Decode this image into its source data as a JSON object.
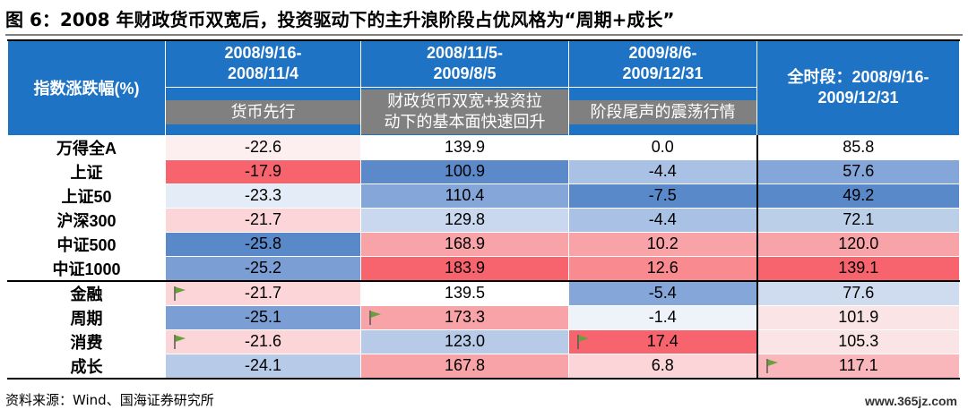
{
  "title": "图 6：2008 年财政货币双宽后，投资驱动下的主升浪阶段占优风格为“周期+成长”",
  "corner_label": "指数涨跌幅(%)",
  "periods": [
    {
      "range": "2008/9/16-\n2008/11/4",
      "phase": "货币先行"
    },
    {
      "range": "2008/11/5-\n2009/8/5",
      "phase": "财政货币双宽+投资拉\n动下的基本面快速回升"
    },
    {
      "range": "2009/8/6-\n2009/12/31",
      "phase": "阶段尾声的震荡行情"
    }
  ],
  "full_period": "全时段：2008/9/16-\n2009/12/31",
  "rows": [
    {
      "name": "万得全A",
      "values": [
        "-22.6",
        "139.9",
        "0.0",
        "85.8"
      ],
      "colors": [
        "#fdeef0",
        "#ffffff",
        "#ffffff",
        "#ffffff"
      ],
      "group_start": false,
      "flags": [
        false,
        false,
        false,
        false
      ]
    },
    {
      "name": "上证",
      "values": [
        "-17.9",
        "100.9",
        "-4.4",
        "57.6"
      ],
      "colors": [
        "#f8646d",
        "#5b89c9",
        "#a9c1e4",
        "#84a6d8"
      ],
      "group_start": false,
      "flags": [
        false,
        false,
        false,
        false
      ]
    },
    {
      "name": "上证50",
      "values": [
        "-23.3",
        "110.4",
        "-7.5",
        "49.2"
      ],
      "colors": [
        "#e4ecf7",
        "#84a6d8",
        "#5a89c9",
        "#5a89c9"
      ],
      "group_start": false,
      "flags": [
        false,
        false,
        false,
        false
      ]
    },
    {
      "name": "沪深300",
      "values": [
        "-21.7",
        "129.8",
        "-4.4",
        "72.1"
      ],
      "colors": [
        "#fbd5d8",
        "#c9d8ee",
        "#a9c1e4",
        "#bccfe9"
      ],
      "group_start": false,
      "flags": [
        false,
        false,
        false,
        false
      ]
    },
    {
      "name": "中证500",
      "values": [
        "-25.8",
        "168.9",
        "10.2",
        "120.0"
      ],
      "colors": [
        "#5a89c9",
        "#f8a3a8",
        "#f8a3a8",
        "#f8a3a8"
      ],
      "group_start": false,
      "flags": [
        false,
        false,
        false,
        false
      ]
    },
    {
      "name": "中证1000",
      "values": [
        "-25.2",
        "183.9",
        "12.6",
        "139.1"
      ],
      "colors": [
        "#7b9fd5",
        "#f8646d",
        "#f88a90",
        "#f8646d"
      ],
      "group_start": false,
      "flags": [
        false,
        false,
        false,
        false
      ]
    },
    {
      "name": "金融",
      "values": [
        "-21.7",
        "139.5",
        "-5.4",
        "77.6"
      ],
      "colors": [
        "#fbd5d8",
        "#ffffff",
        "#84a6d8",
        "#cfdcef"
      ],
      "group_start": true,
      "flags": [
        true,
        false,
        false,
        false
      ]
    },
    {
      "name": "周期",
      "values": [
        "-25.1",
        "173.3",
        "-1.4",
        "101.9"
      ],
      "colors": [
        "#7b9fd5",
        "#f8a3a8",
        "#eef3fa",
        "#fbe4e6"
      ],
      "group_start": false,
      "flags": [
        false,
        true,
        false,
        false
      ]
    },
    {
      "name": "消费",
      "values": [
        "-21.6",
        "123.0",
        "17.4",
        "105.3"
      ],
      "colors": [
        "#fbd5d8",
        "#b7cbe8",
        "#f8646d",
        "#fbe4e6"
      ],
      "group_start": false,
      "flags": [
        true,
        false,
        true,
        false
      ]
    },
    {
      "name": "成长",
      "values": [
        "-24.1",
        "167.8",
        "6.8",
        "117.1"
      ],
      "colors": [
        "#b7cbe8",
        "#f8a3a8",
        "#fbd5d8",
        "#f9b7bb"
      ],
      "group_start": false,
      "flags": [
        false,
        false,
        false,
        true
      ]
    }
  ],
  "source": "资料来源：Wind、国海证券研究所",
  "watermark": "www.365jz.com",
  "header_color": "#1f73c4",
  "phase_color": "#808080",
  "flag_icon": "flag-icon"
}
